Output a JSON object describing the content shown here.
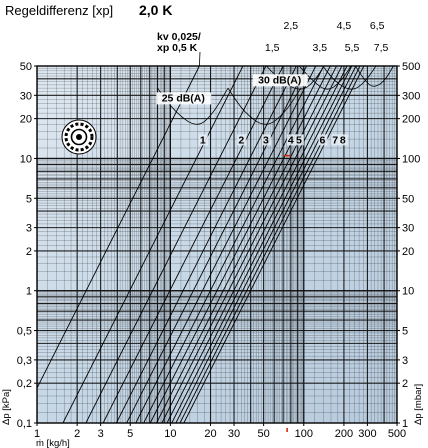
{
  "chart_data": {
    "type": "line",
    "title": {
      "label": "Regeldifferenz [xp]",
      "value": "2,0 K"
    },
    "x_axis": {
      "label": "ṁ [kg/h]",
      "scale": "log",
      "range": [
        1,
        500
      ],
      "ticks": [
        {
          "value": 1,
          "label": "1"
        },
        {
          "value": 2,
          "label": "2"
        },
        {
          "value": 3,
          "label": "3"
        },
        {
          "value": 5,
          "label": "5"
        },
        {
          "value": 10,
          "label": "10"
        },
        {
          "value": 20,
          "label": "20"
        },
        {
          "value": 30,
          "label": "30"
        },
        {
          "value": 50,
          "label": "50"
        },
        {
          "value": 100,
          "label": "100"
        },
        {
          "value": 200,
          "label": "200"
        },
        {
          "value": 300,
          "label": "300"
        },
        {
          "value": 500,
          "label": "500"
        }
      ]
    },
    "y_axis_left": {
      "label": "Δp [kPa]",
      "scale": "log",
      "range": [
        0.1,
        50
      ],
      "ticks": [
        {
          "value": 0.1,
          "label": "0,1"
        },
        {
          "value": 0.2,
          "label": "0,2"
        },
        {
          "value": 0.3,
          "label": "0,3"
        },
        {
          "value": 0.5,
          "label": "0,5"
        },
        {
          "value": 1,
          "label": "1"
        },
        {
          "value": 2,
          "label": "2"
        },
        {
          "value": 3,
          "label": "3"
        },
        {
          "value": 5,
          "label": "5"
        },
        {
          "value": 10,
          "label": "10"
        },
        {
          "value": 20,
          "label": "20"
        },
        {
          "value": 30,
          "label": "30"
        },
        {
          "value": 50,
          "label": "50"
        }
      ]
    },
    "y_axis_right": {
      "label": "Δp [mbar]",
      "scale": "log",
      "range": [
        1,
        500
      ],
      "ticks": [
        {
          "value": 1,
          "label": "1"
        },
        {
          "value": 2,
          "label": "2"
        },
        {
          "value": 3,
          "label": "3"
        },
        {
          "value": 5,
          "label": "5"
        },
        {
          "value": 10,
          "label": "10"
        },
        {
          "value": 20,
          "label": "20"
        },
        {
          "value": 30,
          "label": "30"
        },
        {
          "value": 50,
          "label": "50"
        },
        {
          "value": 100,
          "label": "100"
        },
        {
          "value": 200,
          "label": "200"
        },
        {
          "value": 300,
          "label": "300"
        },
        {
          "value": 500,
          "label": "500"
        }
      ]
    },
    "grid": true,
    "series": [
      {
        "name": "kv 0,025/ xp 0,5 K",
        "x_at_50_kpa": 16.5
      },
      {
        "name": "1",
        "x_at_50_kpa": 35
      },
      {
        "name": "1,5",
        "x_at_50_kpa": 52
      },
      {
        "name": "2",
        "x_at_50_kpa": 70
      },
      {
        "name": "2,5",
        "x_at_50_kpa": 88
      },
      {
        "name": "3",
        "x_at_50_kpa": 105
      },
      {
        "name": "3,5",
        "x_at_50_kpa": 123
      },
      {
        "name": "4",
        "x_at_50_kpa": 141
      },
      {
        "name": "4,5",
        "x_at_50_kpa": 158
      },
      {
        "name": "5",
        "x_at_50_kpa": 176
      },
      {
        "name": "5,5",
        "x_at_50_kpa": 193
      },
      {
        "name": "6",
        "x_at_50_kpa": 211
      },
      {
        "name": "6,5",
        "x_at_50_kpa": 229
      },
      {
        "name": "7",
        "x_at_50_kpa": 246
      },
      {
        "name": "7,5",
        "x_at_50_kpa": 264
      },
      {
        "name": "8",
        "x_at_50_kpa": 282
      }
    ],
    "series_labels_in_plot": [
      {
        "text": "1",
        "x": 17.5,
        "y": 13
      },
      {
        "text": "2",
        "x": 34,
        "y": 13
      },
      {
        "text": "3",
        "x": 52,
        "y": 13
      },
      {
        "text": "4",
        "x": 80,
        "y": 13
      },
      {
        "text": "5",
        "x": 92,
        "y": 13
      },
      {
        "text": "6",
        "x": 138,
        "y": 13
      },
      {
        "text": "7",
        "x": 172,
        "y": 13
      },
      {
        "text": "8",
        "x": 196,
        "y": 13
      }
    ],
    "series_labels_top": [
      {
        "text": "1,5",
        "x": 58,
        "y": 65
      },
      {
        "text": "2,5",
        "x": 80,
        "y": 95
      },
      {
        "text": "3,5",
        "x": 132,
        "y": 65
      },
      {
        "text": "4,5",
        "x": 200,
        "y": 95
      },
      {
        "text": "5,5",
        "x": 230,
        "y": 65
      },
      {
        "text": "6,5",
        "x": 355,
        "y": 95
      },
      {
        "text": "7,5",
        "x": 380,
        "y": 65
      }
    ],
    "kv_annotation": {
      "line1": "kv 0,025/",
      "line2": "xp 0,5 K",
      "x": 9,
      "y": 78
    },
    "noise_curves": [
      {
        "label": "25 dB(A)",
        "points": [
          [
            8,
            34
          ],
          [
            11,
            22
          ],
          [
            16,
            17
          ],
          [
            21,
            22
          ],
          [
            27,
            34
          ]
        ],
        "label_x": 12.5,
        "label_y": 27
      },
      {
        "label": "30 dB(A)",
        "points": [
          [
            27,
            34
          ],
          [
            36,
            22
          ],
          [
            52,
            17
          ],
          [
            72,
            22
          ],
          [
            95,
            34
          ]
        ],
        "label_x": 66,
        "label_y": 37
      },
      {
        "label": "",
        "points": [
          [
            48,
            55
          ],
          [
            68,
            38
          ],
          [
            95,
            32
          ],
          [
            120,
            38
          ],
          [
            150,
            55
          ]
        ]
      },
      {
        "label": "",
        "points": [
          [
            85,
            55
          ],
          [
            118,
            38
          ],
          [
            150,
            32
          ],
          [
            190,
            38
          ],
          [
            240,
            55
          ]
        ]
      },
      {
        "label": "",
        "points": [
          [
            130,
            55
          ],
          [
            170,
            38
          ],
          [
            230,
            32
          ],
          [
            290,
            38
          ],
          [
            370,
            55
          ]
        ]
      },
      {
        "label": "",
        "points": [
          [
            230,
            55
          ],
          [
            280,
            40
          ],
          [
            330,
            34
          ],
          [
            400,
            38
          ],
          [
            470,
            50
          ]
        ]
      }
    ],
    "reference_marker": {
      "x": 75,
      "y": 10.5
    },
    "colors": {
      "plot_background": "#c6d7e6",
      "grid_minor": "#111111",
      "grid_major": "#000000",
      "series_line": "#000000",
      "marker": "#cc2200"
    }
  }
}
